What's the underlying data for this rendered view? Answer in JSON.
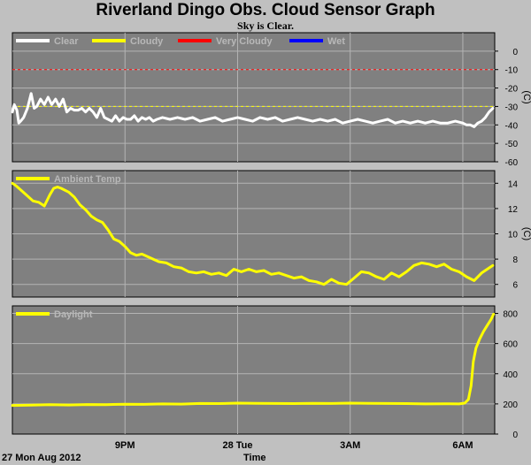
{
  "header": {
    "title": "Riverland Dingo Obs. Cloud Sensor Graph",
    "subtitle": "Sky is Clear."
  },
  "footer": {
    "date_label": "27 Mon Aug 2012",
    "axis_label": "Time"
  },
  "colors": {
    "background": "#c0c0c0",
    "plot_bg": "#808080",
    "grid": "#b4b4b4",
    "clear": "#ffffff",
    "cloudy": "#ffff00",
    "very_cloudy": "#ff0000",
    "wet": "#0000ff",
    "ambient": "#ffff00",
    "daylight": "#ffff00"
  },
  "chart_data": [
    {
      "type": "line",
      "title": "",
      "ylabel": "(C)",
      "ylim": [
        -60,
        10
      ],
      "yticks": [
        0,
        -10,
        -20,
        -30,
        -40,
        -50,
        -60
      ],
      "xlim": [
        18.0,
        30.85
      ],
      "xticks": [
        {
          "value": 21,
          "label": "9PM"
        },
        {
          "value": 24,
          "label": "28 Tue"
        },
        {
          "value": 27,
          "label": "3AM"
        },
        {
          "value": 30,
          "label": "6AM"
        }
      ],
      "legend": [
        "Clear",
        "Cloudy",
        "Very Cloudy",
        "Wet"
      ],
      "thresholds": [
        {
          "name": "Cloudy",
          "value": -30,
          "color": "#ffff00"
        },
        {
          "name": "Very Cloudy",
          "value": -10,
          "color": "#ff0000"
        }
      ],
      "series": [
        {
          "name": "Clear",
          "color": "#ffffff",
          "x": [
            18.0,
            18.05,
            18.12,
            18.17,
            18.22,
            18.3,
            18.4,
            18.5,
            18.58,
            18.65,
            18.75,
            18.85,
            18.95,
            19.05,
            19.15,
            19.25,
            19.35,
            19.45,
            19.55,
            19.65,
            19.75,
            19.85,
            19.95,
            20.05,
            20.15,
            20.25,
            20.35,
            20.45,
            20.55,
            20.65,
            20.75,
            20.85,
            20.95,
            21.05,
            21.15,
            21.25,
            21.35,
            21.45,
            21.55,
            21.65,
            21.75,
            21.85,
            22.0,
            22.2,
            22.4,
            22.6,
            22.8,
            23.0,
            23.2,
            23.4,
            23.6,
            23.8,
            24.0,
            24.2,
            24.4,
            24.6,
            24.8,
            25.0,
            25.2,
            25.4,
            25.6,
            25.8,
            26.0,
            26.2,
            26.4,
            26.6,
            26.8,
            27.0,
            27.2,
            27.4,
            27.6,
            27.8,
            28.0,
            28.2,
            28.4,
            28.6,
            28.8,
            29.0,
            29.2,
            29.4,
            29.6,
            29.8,
            30.0,
            30.1,
            30.2,
            30.3,
            30.4,
            30.5,
            30.6,
            30.7,
            30.8
          ],
          "y": [
            -33,
            -29,
            -32,
            -39,
            -38,
            -36,
            -31,
            -23,
            -31,
            -30,
            -26,
            -29,
            -25,
            -29,
            -26,
            -30,
            -26,
            -33,
            -31,
            -32,
            -32,
            -31,
            -33,
            -31,
            -33,
            -36,
            -31,
            -36,
            -37,
            -38,
            -35,
            -38,
            -36,
            -37,
            -37,
            -35,
            -38,
            -36,
            -37,
            -36,
            -38,
            -37,
            -36,
            -37,
            -36,
            -37,
            -36,
            -38,
            -37,
            -36,
            -38,
            -37,
            -36,
            -37,
            -38,
            -36,
            -37,
            -36,
            -38,
            -37,
            -36,
            -37,
            -38,
            -37,
            -38,
            -37,
            -39,
            -38,
            -37,
            -38,
            -39,
            -38,
            -37,
            -39,
            -38,
            -39,
            -38,
            -39,
            -38,
            -39,
            -39,
            -38,
            -39,
            -40,
            -40,
            -41,
            -39,
            -38,
            -36,
            -33,
            -31
          ]
        }
      ]
    },
    {
      "type": "line",
      "title": "",
      "ylabel": "(C)",
      "ylim": [
        5,
        15
      ],
      "yticks": [
        6,
        8,
        10,
        12,
        14
      ],
      "xlim": [
        18.0,
        30.85
      ],
      "xticks": [
        {
          "value": 21,
          "label": "9PM"
        },
        {
          "value": 24,
          "label": "28 Tue"
        },
        {
          "value": 27,
          "label": "3AM"
        },
        {
          "value": 30,
          "label": "6AM"
        }
      ],
      "legend": [
        "Ambient Temp"
      ],
      "series": [
        {
          "name": "Ambient Temp",
          "color": "#ffff00",
          "x": [
            18.0,
            18.1,
            18.25,
            18.4,
            18.55,
            18.7,
            18.85,
            19.0,
            19.1,
            19.2,
            19.3,
            19.5,
            19.65,
            19.8,
            19.95,
            20.1,
            20.25,
            20.4,
            20.55,
            20.7,
            20.85,
            21.0,
            21.15,
            21.3,
            21.45,
            21.6,
            21.75,
            21.9,
            22.1,
            22.3,
            22.5,
            22.7,
            22.9,
            23.1,
            23.3,
            23.5,
            23.7,
            23.9,
            24.1,
            24.3,
            24.5,
            24.7,
            24.9,
            25.1,
            25.3,
            25.5,
            25.7,
            25.9,
            26.1,
            26.3,
            26.5,
            26.7,
            26.9,
            27.1,
            27.3,
            27.5,
            27.7,
            27.9,
            28.1,
            28.3,
            28.5,
            28.7,
            28.9,
            29.1,
            29.3,
            29.5,
            29.7,
            29.9,
            30.1,
            30.3,
            30.5,
            30.7,
            30.8
          ],
          "y": [
            14.0,
            13.8,
            13.4,
            13.0,
            12.6,
            12.5,
            12.2,
            13.1,
            13.6,
            13.7,
            13.6,
            13.3,
            12.9,
            12.3,
            11.9,
            11.4,
            11.1,
            10.9,
            10.3,
            9.6,
            9.4,
            9.0,
            8.5,
            8.3,
            8.4,
            8.2,
            8.0,
            7.8,
            7.7,
            7.4,
            7.3,
            7.0,
            6.9,
            7.0,
            6.8,
            6.9,
            6.7,
            7.2,
            7.0,
            7.2,
            7.0,
            7.1,
            6.8,
            6.9,
            6.7,
            6.5,
            6.6,
            6.3,
            6.2,
            6.0,
            6.4,
            6.1,
            6.0,
            6.5,
            7.0,
            6.9,
            6.6,
            6.4,
            6.9,
            6.6,
            7.0,
            7.5,
            7.7,
            7.6,
            7.4,
            7.6,
            7.2,
            7.0,
            6.6,
            6.3,
            6.9,
            7.3,
            7.5
          ]
        }
      ]
    },
    {
      "type": "line",
      "title": "",
      "ylabel": "",
      "ylim": [
        0,
        850
      ],
      "yticks": [
        0,
        200,
        400,
        600,
        800
      ],
      "xlim": [
        18.0,
        30.85
      ],
      "xticks": [
        {
          "value": 21,
          "label": "9PM"
        },
        {
          "value": 24,
          "label": "28 Tue"
        },
        {
          "value": 27,
          "label": "3AM"
        },
        {
          "value": 30,
          "label": "6AM"
        }
      ],
      "legend": [
        "Daylight"
      ],
      "series": [
        {
          "name": "Daylight",
          "color": "#ffff00",
          "x": [
            18.0,
            18.5,
            19.0,
            19.5,
            20.0,
            20.5,
            21.0,
            21.5,
            22.0,
            22.5,
            23.0,
            23.5,
            24.0,
            24.5,
            25.0,
            25.5,
            26.0,
            26.5,
            27.0,
            27.5,
            28.0,
            28.5,
            29.0,
            29.5,
            29.9,
            30.05,
            30.15,
            30.22,
            30.28,
            30.35,
            30.45,
            30.55,
            30.65,
            30.75,
            30.82
          ],
          "y": [
            190,
            192,
            195,
            193,
            196,
            195,
            198,
            197,
            200,
            199,
            203,
            202,
            205,
            204,
            203,
            202,
            204,
            203,
            205,
            204,
            203,
            202,
            200,
            201,
            200,
            205,
            230,
            320,
            480,
            570,
            630,
            680,
            720,
            760,
            795
          ]
        }
      ]
    }
  ]
}
